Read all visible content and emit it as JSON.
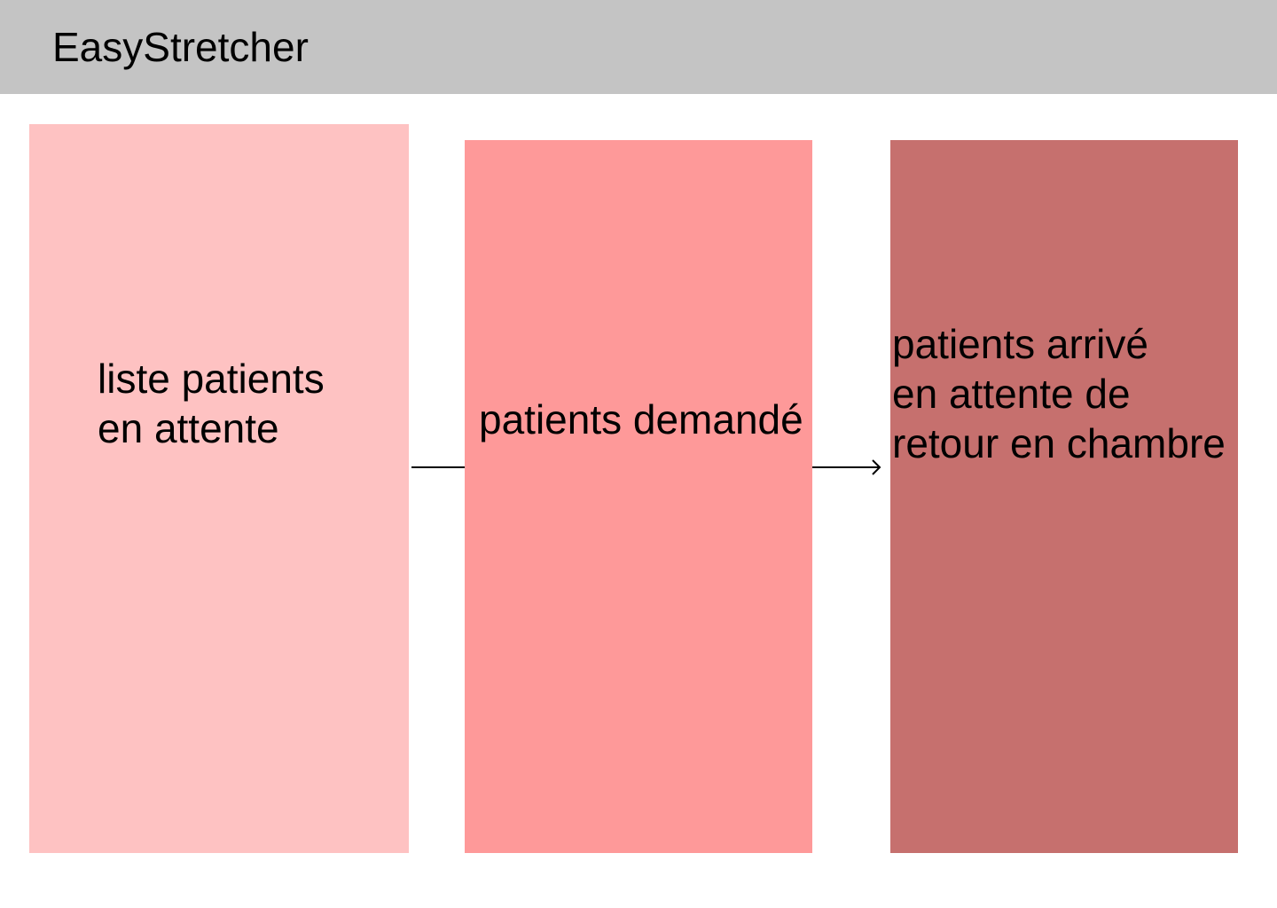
{
  "app": {
    "title": "EasyStretcher"
  },
  "columns": [
    {
      "id": "waiting",
      "label": "liste patients\nen attente",
      "color": "#fec2c2"
    },
    {
      "id": "requested",
      "label": "patients demandé",
      "color": "#fe9999"
    },
    {
      "id": "arrived",
      "label": "patients arrivé\nen attente de\nretour en chambre",
      "color": "#c6706e"
    }
  ],
  "arrows": [
    {
      "icon": "arrow-right-icon"
    },
    {
      "icon": "arrow-right-icon"
    }
  ]
}
